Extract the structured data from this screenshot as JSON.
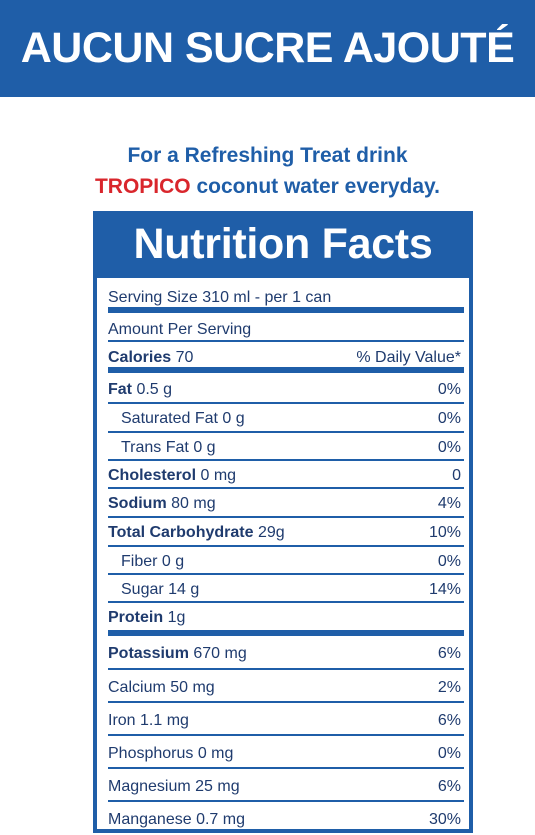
{
  "banner": {
    "text": "AUCUN SUCRE AJOUTÉ"
  },
  "tagline": {
    "line1": "For a Refreshing Treat drink",
    "brand": "TROPICO",
    "line2_rest": " coconut water everyday."
  },
  "label": {
    "title": "Nutrition Facts",
    "serving_size": "Serving Size 310 ml - per 1 can",
    "amount_per_serving": "Amount Per Serving",
    "calories_label": "Calories",
    "calories_value": "70",
    "daily_value_header": "% Daily Value*",
    "nutrients": [
      {
        "bold": "Fat",
        "amount": "0.5 g",
        "dv": "0%"
      },
      {
        "bold": "",
        "amount": "Saturated Fat 0 g",
        "dv": "0%"
      },
      {
        "bold": "",
        "amount": "Trans Fat 0 g",
        "dv": "0%"
      },
      {
        "bold": "Cholesterol",
        "amount": "0 mg",
        "dv": "0"
      },
      {
        "bold": "Sodium",
        "amount": "80 mg",
        "dv": "4%"
      },
      {
        "bold": "Total Carbohydrate",
        "amount": "29g",
        "dv": "10%"
      },
      {
        "bold": "",
        "amount": "Fiber 0 g",
        "dv": "0%"
      },
      {
        "bold": "",
        "amount": "Sugar 14 g",
        "dv": "14%"
      },
      {
        "bold": "Protein",
        "amount": "1g",
        "dv": ""
      },
      {
        "bold": "Potassium",
        "amount": "670 mg",
        "dv": "6%"
      },
      {
        "bold": "",
        "amount": "Calcium 50 mg",
        "dv": "2%"
      },
      {
        "bold": "",
        "amount": "Iron 1.1  mg",
        "dv": "6%"
      },
      {
        "bold": "",
        "amount": "Phosphorus 0 mg",
        "dv": "0%"
      },
      {
        "bold": "",
        "amount": "Magnesium 25 mg",
        "dv": "6%"
      },
      {
        "bold": "",
        "amount": "Manganese 0.7 mg",
        "dv": "30%"
      }
    ]
  },
  "colors": {
    "brand_blue": "#1f5ea8",
    "brand_red": "#d9262c",
    "text": "#1f3b6e"
  }
}
